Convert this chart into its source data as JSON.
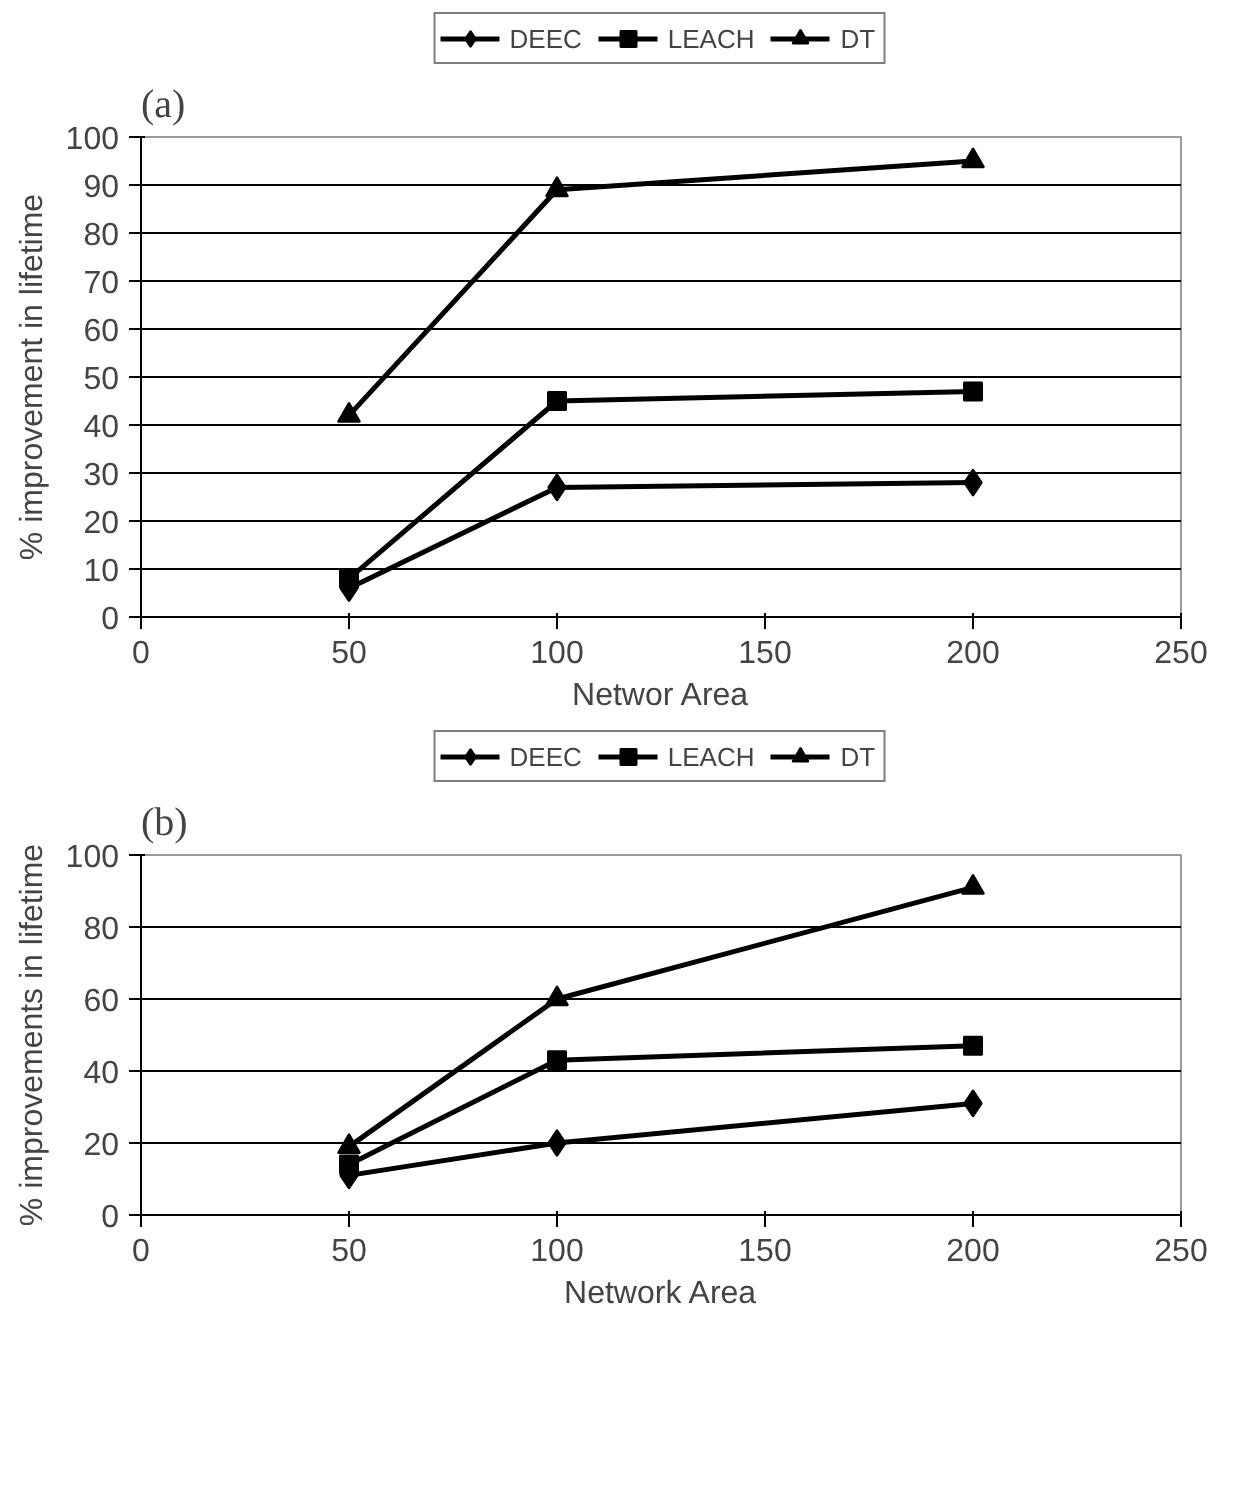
{
  "chart_data": [
    {
      "type": "line",
      "title": "(a)",
      "xlabel": "Networ Area",
      "ylabel": "% improvement in lifetime",
      "x": [
        50,
        100,
        200
      ],
      "xlim": [
        0,
        250
      ],
      "xticks": [
        0,
        50,
        100,
        150,
        200,
        250
      ],
      "ylim": [
        0,
        100
      ],
      "yticks": [
        0,
        10,
        20,
        30,
        40,
        50,
        60,
        70,
        80,
        90,
        100
      ],
      "grid": "y",
      "legend": "top",
      "series": [
        {
          "name": "DEEC",
          "color": "#000000",
          "marker": "diamond",
          "values": [
            6,
            27,
            28
          ]
        },
        {
          "name": "LEACH",
          "color": "#000000",
          "marker": "square",
          "values": [
            8,
            45,
            47
          ]
        },
        {
          "name": "DT",
          "color": "#000000",
          "marker": "triangle",
          "values": [
            42,
            89,
            95
          ]
        }
      ]
    },
    {
      "type": "line",
      "title": "(b)",
      "xlabel": "Network Area",
      "ylabel": "% improvements in lifetime",
      "x": [
        50,
        100,
        200
      ],
      "xlim": [
        0,
        250
      ],
      "xticks": [
        0,
        50,
        100,
        150,
        200,
        250
      ],
      "ylim": [
        0,
        100
      ],
      "yticks": [
        0,
        20,
        40,
        60,
        80,
        100
      ],
      "grid": "y",
      "legend": "top",
      "series": [
        {
          "name": "DEEC",
          "color": "#000000",
          "marker": "diamond",
          "values": [
            11,
            20,
            31
          ]
        },
        {
          "name": "LEACH",
          "color": "#000000",
          "marker": "square",
          "values": [
            14,
            43,
            47
          ]
        },
        {
          "name": "DT",
          "color": "#000000",
          "marker": "triangle",
          "values": [
            19,
            60,
            91
          ]
        }
      ]
    }
  ]
}
